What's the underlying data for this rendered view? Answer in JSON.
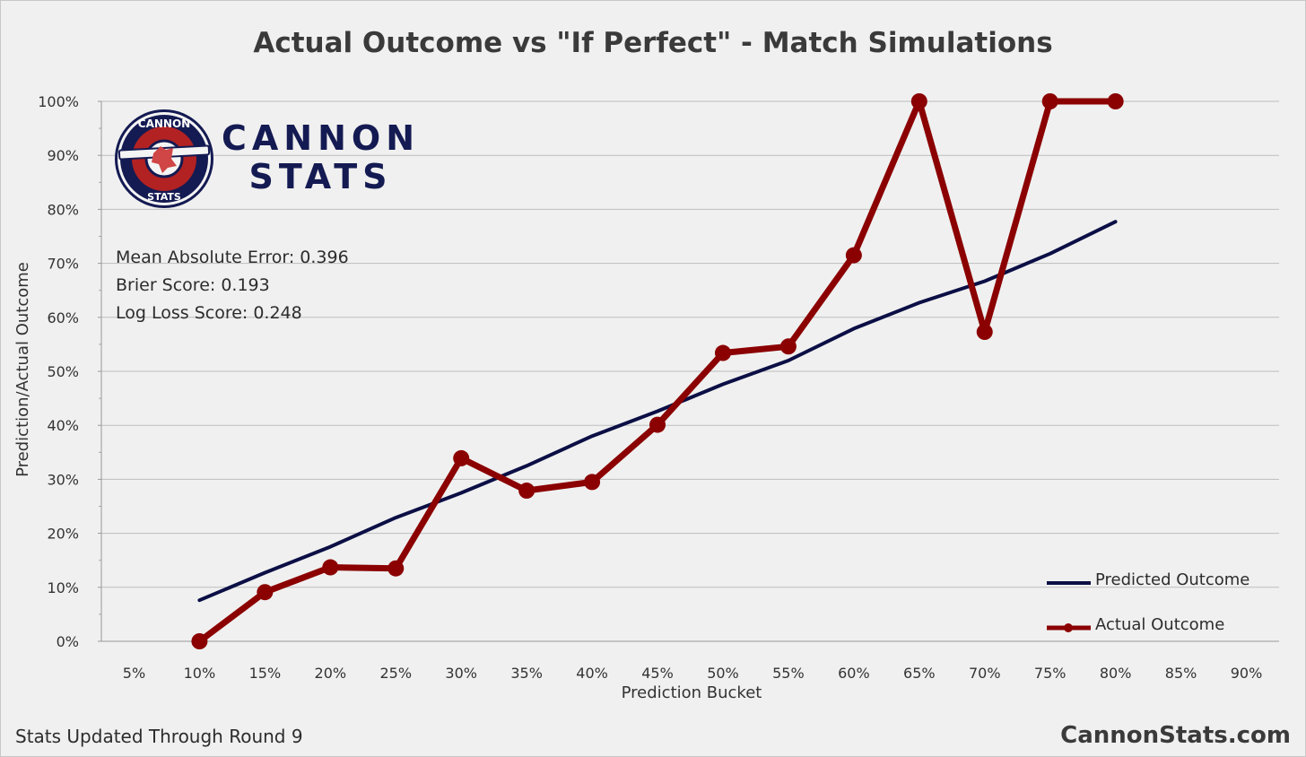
{
  "chart_data": {
    "type": "line",
    "title": "Actual Outcome vs \"If Perfect\" - Match Simulations",
    "xlabel": "Prediction Bucket",
    "ylabel": "Prediction/Actual Outcome",
    "categories": [
      "5%",
      "10%",
      "15%",
      "20%",
      "25%",
      "30%",
      "35%",
      "40%",
      "45%",
      "50%",
      "55%",
      "60%",
      "65%",
      "70%",
      "75%",
      "80%",
      "85%",
      "90%"
    ],
    "yticks": [
      "0%",
      "10%",
      "20%",
      "30%",
      "40%",
      "50%",
      "60%",
      "70%",
      "80%",
      "90%",
      "100%"
    ],
    "ylim": [
      0,
      100
    ],
    "grid": true,
    "legend_position": "bottom-right",
    "series": [
      {
        "name": "Predicted Outcome",
        "color": "#0b0f45",
        "values": [
          null,
          7.6,
          12.7,
          17.5,
          22.9,
          27.5,
          32.5,
          38.0,
          42.6,
          47.6,
          52.0,
          57.9,
          62.7,
          66.7,
          71.8,
          77.7,
          null,
          null
        ]
      },
      {
        "name": "Actual Outcome",
        "color": "#8b0000",
        "marker": "circle",
        "values": [
          null,
          0.0,
          9.1,
          13.7,
          13.5,
          33.9,
          27.9,
          29.5,
          40.1,
          53.4,
          54.6,
          71.5,
          100.0,
          57.3,
          100.0,
          100.0,
          null,
          null
        ]
      }
    ]
  },
  "stats": {
    "mae": "Mean Absolute Error: 0.396",
    "brier": "Brier Score: 0.193",
    "logloss": "Log Loss Score: 0.248"
  },
  "logo": {
    "line1": "CANNON",
    "line2": "STATS",
    "badge_top": "CANNON",
    "badge_bottom": "STATS"
  },
  "footer": {
    "left": "Stats Updated Through Round 9",
    "right": "CannonStats.com"
  },
  "colors": {
    "navy": "#0b0f45",
    "red": "#8b0000",
    "brand": "#141a52"
  }
}
